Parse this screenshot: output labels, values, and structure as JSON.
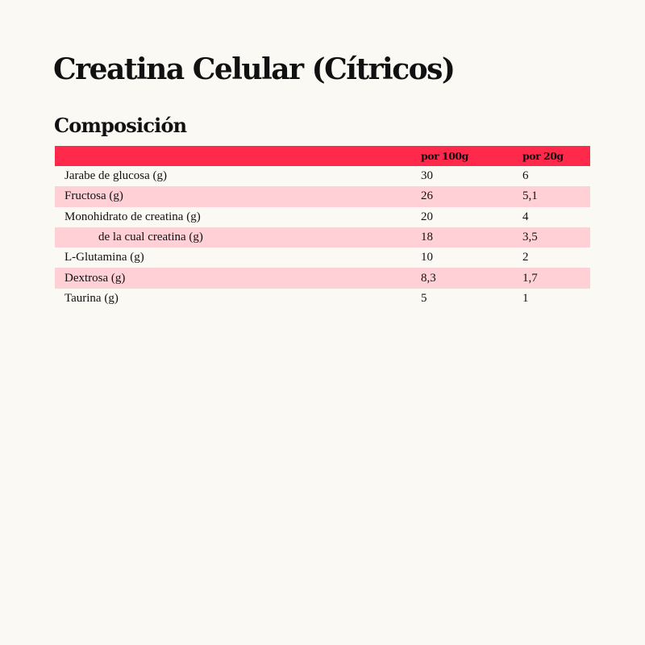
{
  "title": "Creatina Celular (Cítricos)",
  "subtitle": "Composición",
  "colors": {
    "header": "#ff2a4b",
    "alt_row": "#ffd0d5",
    "background": "#fbf9f4"
  },
  "table": {
    "headers": [
      "",
      "por 100g",
      "por 20g"
    ],
    "rows": [
      [
        "Jarabe de glucosa (g)",
        "30",
        "6"
      ],
      [
        "Fructosa (g)",
        "26",
        "5,1"
      ],
      [
        "Monohidrato de creatina (g)",
        "20",
        "4"
      ],
      [
        "de la cual creatina (g)",
        "18",
        "3,5"
      ],
      [
        "L-Glutamina (g)",
        "10",
        "2"
      ],
      [
        "Dextrosa (g)",
        "8,3",
        "1,7"
      ],
      [
        "Taurina (g)",
        "5",
        "1"
      ]
    ]
  }
}
